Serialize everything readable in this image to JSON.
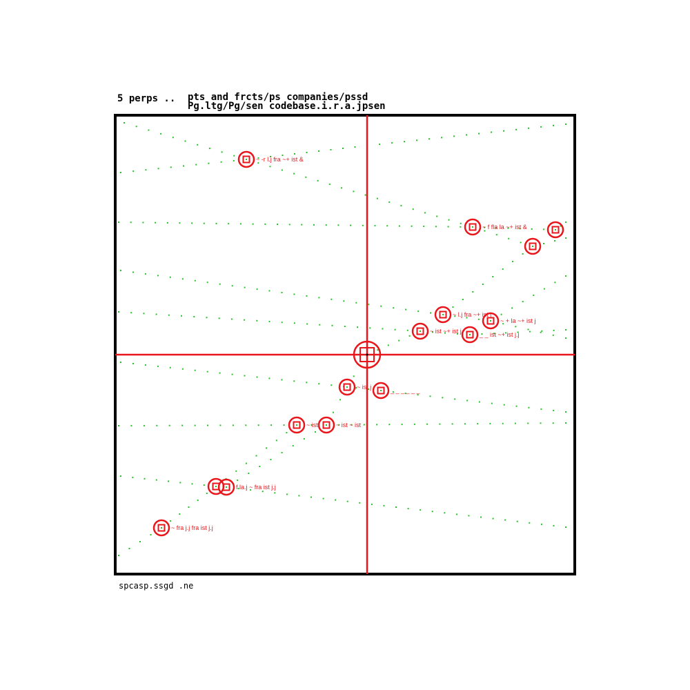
{
  "header": {
    "left_text": "5 perps ..",
    "right_line1": "pts and frcts/ps companies/pssd",
    "right_line2": "Pg.ltg/Pg/sen codebase.i.r.a.jpsen"
  },
  "footer": {
    "text": "spcasp.ssgd .ne"
  },
  "colors": {
    "frame": "#000000",
    "axis": "#e8161b",
    "marker": "#e8161b",
    "trail": "#22c322"
  },
  "targets": [
    {
      "id": "t1",
      "label": "~ -r l.j fra ~+ ist &"
    },
    {
      "id": "t2",
      "label": "~ f fla la ~+ ist &"
    },
    {
      "id": "t3",
      "label": ""
    },
    {
      "id": "t4",
      "label": ""
    },
    {
      "id": "t5",
      "label": "~ l.j fra ~+ ist j"
    },
    {
      "id": "t6",
      "label": "~ + la ~+ ist j"
    },
    {
      "id": "t7",
      "label": "~ ist ~+ ist j"
    },
    {
      "id": "t8",
      "label": "_ _ ist ~+ ist j.j"
    },
    {
      "id": "t9",
      "label": "~ ist j"
    },
    {
      "id": "t10",
      "label": "_ _ _ _ _ _"
    },
    {
      "id": "t11",
      "label": "~ ist"
    },
    {
      "id": "t12",
      "label": "~ ist  ~ ist"
    },
    {
      "id": "t13",
      "label": ""
    },
    {
      "id": "t14",
      "label": "f la.j ~ fra ist j.j"
    },
    {
      "id": "t15",
      "label": "~ fra j.j fra ist j.j"
    }
  ],
  "own_ship": {
    "label": ""
  }
}
